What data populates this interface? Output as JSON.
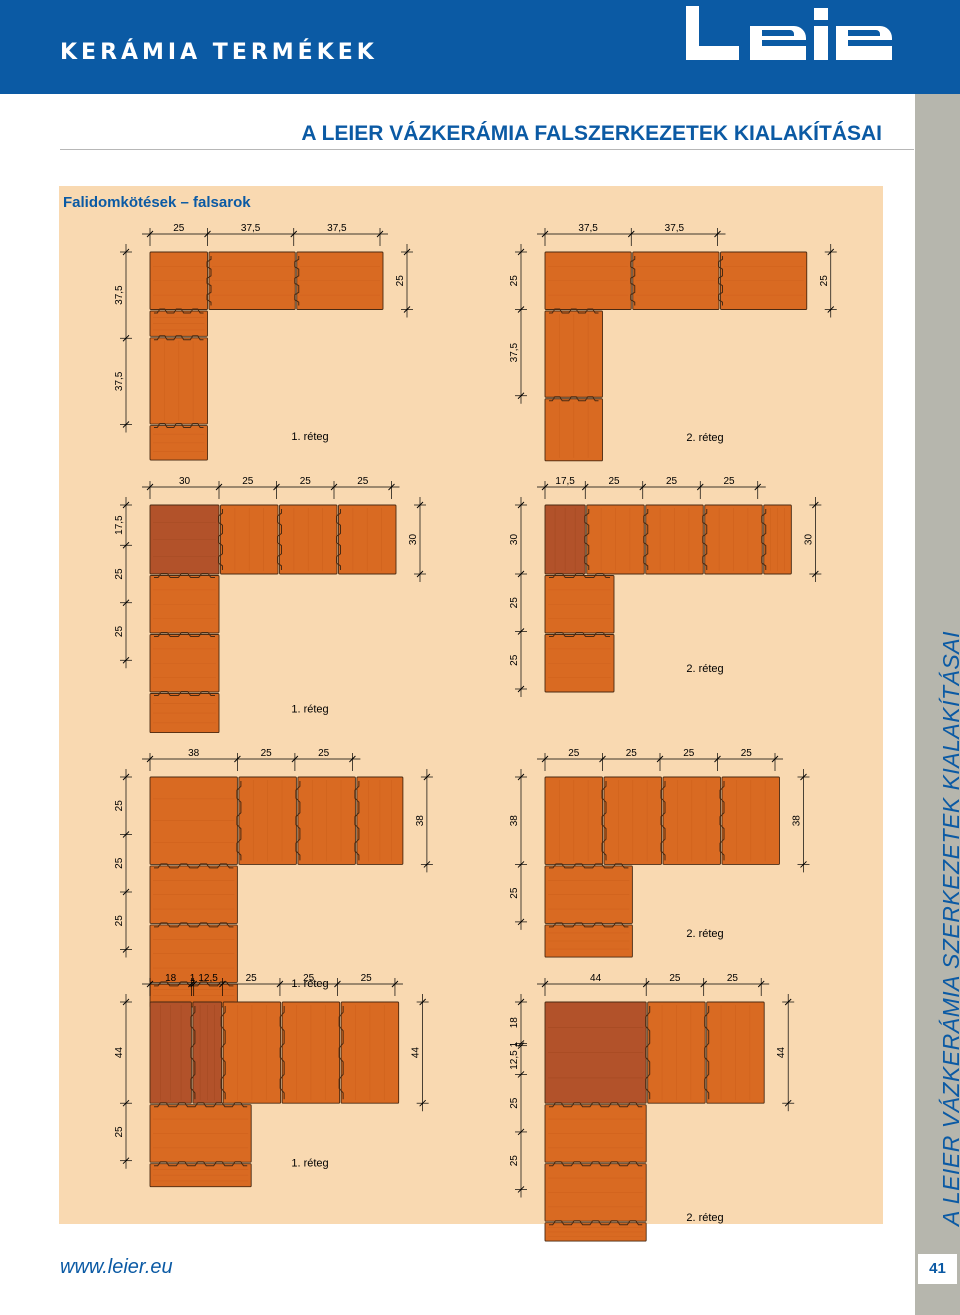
{
  "header": {
    "category": "KERÁMIA TERMÉKEK",
    "logo_text": "Leier"
  },
  "page_title": "A LEIER VÁZKERÁMIA FALSZERKEZETEK KIALAKÍTÁSAI",
  "section_title": "Falidomkötések – falsarok",
  "side_title": "A LEIER VÁZKERÁMIA SZERKEZETEK KIALAKÍTÁSAI",
  "page_number": "41",
  "footer": {
    "url": "www.leier.eu"
  },
  "layer_labels": {
    "first": "1. réteg",
    "second": "2. réteg"
  },
  "colors": {
    "brand_blue": "#0b5aa4",
    "panel": "#f9d9b1",
    "brick": "#d96a22",
    "brick_dark": "#b2522a",
    "strip": "#b6b6ad"
  },
  "diagrams": [
    {
      "id": "r1-layer1",
      "top_dims": [
        "25",
        "37,5",
        "37,5"
      ],
      "left_dims": [
        "37,5",
        "37,5"
      ],
      "right_dims": [
        "25"
      ],
      "layer": "1. réteg"
    },
    {
      "id": "r1-layer2",
      "top_dims": [
        "37,5",
        "37,5"
      ],
      "left_dims": [
        "25",
        "37,5"
      ],
      "right_dims": [
        "25"
      ],
      "layer": "2. réteg"
    },
    {
      "id": "r2-layer1",
      "top_dims": [
        "30",
        "25",
        "25",
        "25"
      ],
      "left_dims": [
        "17,5",
        "25",
        "25"
      ],
      "right_dims": [
        "30"
      ],
      "layer": "1. réteg"
    },
    {
      "id": "r2-layer2",
      "top_dims": [
        "17,5",
        "25",
        "25",
        "25"
      ],
      "left_dims": [
        "30",
        "25",
        "25"
      ],
      "right_dims": [
        "30"
      ],
      "layer": "2. réteg"
    },
    {
      "id": "r3-layer1",
      "top_dims": [
        "38",
        "25",
        "25"
      ],
      "left_dims": [
        "25",
        "25",
        "25"
      ],
      "right_dims": [
        "38"
      ],
      "layer": "1. réteg"
    },
    {
      "id": "r3-layer2",
      "top_dims": [
        "25",
        "25",
        "25",
        "25"
      ],
      "left_dims": [
        "38",
        "25"
      ],
      "right_dims": [
        "38"
      ],
      "layer": "2. réteg"
    },
    {
      "id": "r4-layer1",
      "top_dims": [
        "18",
        "1",
        "12,5",
        "25",
        "25",
        "25"
      ],
      "left_dims": [
        "44",
        "25"
      ],
      "right_dims": [
        "44"
      ],
      "layer": "1. réteg"
    },
    {
      "id": "r4-layer2",
      "top_dims": [
        "44",
        "25",
        "25"
      ],
      "left_dims": [
        "18",
        "1",
        "12,5",
        "25",
        "25"
      ],
      "right_dims": [
        "44"
      ],
      "layer": "2. réteg"
    }
  ]
}
